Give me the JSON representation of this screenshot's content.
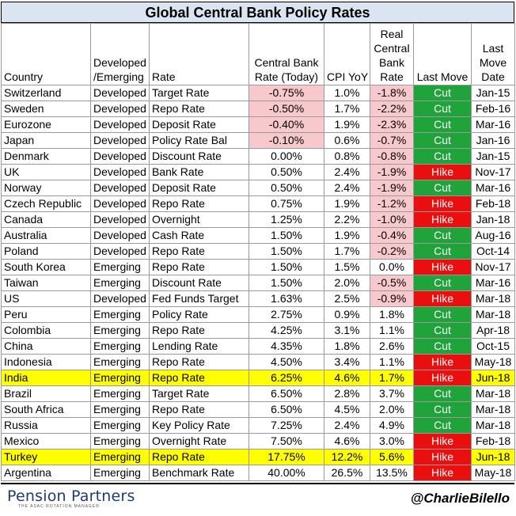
{
  "title": "Global Central Bank Policy Rates",
  "headers": {
    "country": "Country",
    "dev1": "Developed",
    "dev2": "/Emerging",
    "rate": "Rate",
    "cb1": "Central Bank",
    "cb2": "Rate (Today)",
    "cpi": "CPI YoY",
    "real1": "Real",
    "real2": "Central",
    "real3": "Bank",
    "real4": "Rate",
    "last_move": "Last Move",
    "date1": "Last",
    "date2": "Move",
    "date3": "Date"
  },
  "rows": [
    {
      "country": "Switzerland",
      "dev": "Developed",
      "rate": "Target Rate",
      "cb": "-0.75%",
      "cpi": "1.0%",
      "real": "-1.8%",
      "move": "Cut",
      "date": "Jan-15"
    },
    {
      "country": "Sweden",
      "dev": "Developed",
      "rate": "Repo Rate",
      "cb": "-0.50%",
      "cpi": "1.7%",
      "real": "-2.2%",
      "move": "Cut",
      "date": "Feb-16"
    },
    {
      "country": "Eurozone",
      "dev": "Developed",
      "rate": "Deposit Rate",
      "cb": "-0.40%",
      "cpi": "1.9%",
      "real": "-2.3%",
      "move": "Cut",
      "date": "Mar-16"
    },
    {
      "country": "Japan",
      "dev": "Developed",
      "rate": "Policy Rate Bal",
      "cb": "-0.10%",
      "cpi": "0.6%",
      "real": "-0.7%",
      "move": "Cut",
      "date": "Jan-16"
    },
    {
      "country": "Denmark",
      "dev": "Developed",
      "rate": "Discount Rate",
      "cb": "0.00%",
      "cpi": "0.8%",
      "real": "-0.8%",
      "move": "Cut",
      "date": "Jan-15"
    },
    {
      "country": "UK",
      "dev": "Developed",
      "rate": "Bank Rate",
      "cb": "0.50%",
      "cpi": "2.4%",
      "real": "-1.9%",
      "move": "Hike",
      "date": "Nov-17"
    },
    {
      "country": "Norway",
      "dev": "Developed",
      "rate": "Deposit Rate",
      "cb": "0.50%",
      "cpi": "2.4%",
      "real": "-1.9%",
      "move": "Cut",
      "date": "Mar-16"
    },
    {
      "country": "Czech Republic",
      "dev": "Developed",
      "rate": "Repo Rate",
      "cb": "0.75%",
      "cpi": "1.9%",
      "real": "-1.2%",
      "move": "Hike",
      "date": "Feb-18"
    },
    {
      "country": "Canada",
      "dev": "Developed",
      "rate": "Overnight",
      "cb": "1.25%",
      "cpi": "2.2%",
      "real": "-1.0%",
      "move": "Hike",
      "date": "Jan-18"
    },
    {
      "country": "Australia",
      "dev": "Developed",
      "rate": "Cash Rate",
      "cb": "1.50%",
      "cpi": "1.9%",
      "real": "-0.4%",
      "move": "Cut",
      "date": "Aug-16"
    },
    {
      "country": "Poland",
      "dev": "Developed",
      "rate": "Repo Rate",
      "cb": "1.50%",
      "cpi": "1.7%",
      "real": "-0.2%",
      "move": "Cut",
      "date": "Oct-14"
    },
    {
      "country": "South Korea",
      "dev": "Emerging",
      "rate": "Repo Rate",
      "cb": "1.50%",
      "cpi": "1.5%",
      "real": "0.0%",
      "move": "Hike",
      "date": "Nov-17"
    },
    {
      "country": "Taiwan",
      "dev": "Emerging",
      "rate": "Discount Rate",
      "cb": "1.50%",
      "cpi": "2.0%",
      "real": "-0.5%",
      "move": "Cut",
      "date": "Mar-16"
    },
    {
      "country": "US",
      "dev": "Developed",
      "rate": "Fed Funds Target",
      "cb": "1.63%",
      "cpi": "2.5%",
      "real": "-0.9%",
      "move": "Hike",
      "date": "Mar-18"
    },
    {
      "country": "Peru",
      "dev": "Emerging",
      "rate": "Policy Rate",
      "cb": "2.75%",
      "cpi": "0.9%",
      "real": "1.8%",
      "move": "Cut",
      "date": "Mar-18"
    },
    {
      "country": "Colombia",
      "dev": "Emerging",
      "rate": "Repo Rate",
      "cb": "4.25%",
      "cpi": "3.1%",
      "real": "1.1%",
      "move": "Cut",
      "date": "Apr-18"
    },
    {
      "country": "China",
      "dev": "Emerging",
      "rate": "Lending Rate",
      "cb": "4.35%",
      "cpi": "1.8%",
      "real": "2.6%",
      "move": "Cut",
      "date": "Oct-15"
    },
    {
      "country": "Indonesia",
      "dev": "Emerging",
      "rate": "Repo Rate",
      "cb": "4.50%",
      "cpi": "3.4%",
      "real": "1.1%",
      "move": "Hike",
      "date": "May-18"
    },
    {
      "country": "India",
      "dev": "Emerging",
      "rate": "Repo Rate",
      "cb": "6.25%",
      "cpi": "4.6%",
      "real": "1.7%",
      "move": "Hike",
      "date": "Jun-18",
      "highlight": true
    },
    {
      "country": "Brazil",
      "dev": "Emerging",
      "rate": "Target Rate",
      "cb": "6.50%",
      "cpi": "2.8%",
      "real": "3.7%",
      "move": "Cut",
      "date": "Mar-18"
    },
    {
      "country": "South Africa",
      "dev": "Emerging",
      "rate": "Repo Rate",
      "cb": "6.50%",
      "cpi": "4.5%",
      "real": "2.0%",
      "move": "Cut",
      "date": "Mar-18"
    },
    {
      "country": "Russia",
      "dev": "Emerging",
      "rate": "Key Policy Rate",
      "cb": "7.25%",
      "cpi": "2.4%",
      "real": "4.9%",
      "move": "Cut",
      "date": "Mar-18"
    },
    {
      "country": "Mexico",
      "dev": "Emerging",
      "rate": "Overnight Rate",
      "cb": "7.50%",
      "cpi": "4.6%",
      "real": "3.0%",
      "move": "Hike",
      "date": "Feb-18"
    },
    {
      "country": "Turkey",
      "dev": "Emerging",
      "rate": "Repo Rate",
      "cb": "17.75%",
      "cpi": "12.2%",
      "real": "5.6%",
      "move": "Hike",
      "date": "Jun-18",
      "highlight": true
    },
    {
      "country": "Argentina",
      "dev": "Emerging",
      "rate": "Benchmark Rate",
      "cb": "40.00%",
      "cpi": "26.5%",
      "real": "13.5%",
      "move": "Hike",
      "date": "May-18"
    }
  ],
  "colors": {
    "title_bg": "#dbe5f1",
    "negative_bg": "#f8c9cc",
    "cut_bg": "#1fa33a",
    "hike_bg": "#ea0f0f",
    "highlight_bg": "#ffff00"
  },
  "footer": {
    "logo": "Pension Partners",
    "logo_sub": "THE ASAC ROTATION MANAGER",
    "handle": "@CharlieBilello"
  }
}
